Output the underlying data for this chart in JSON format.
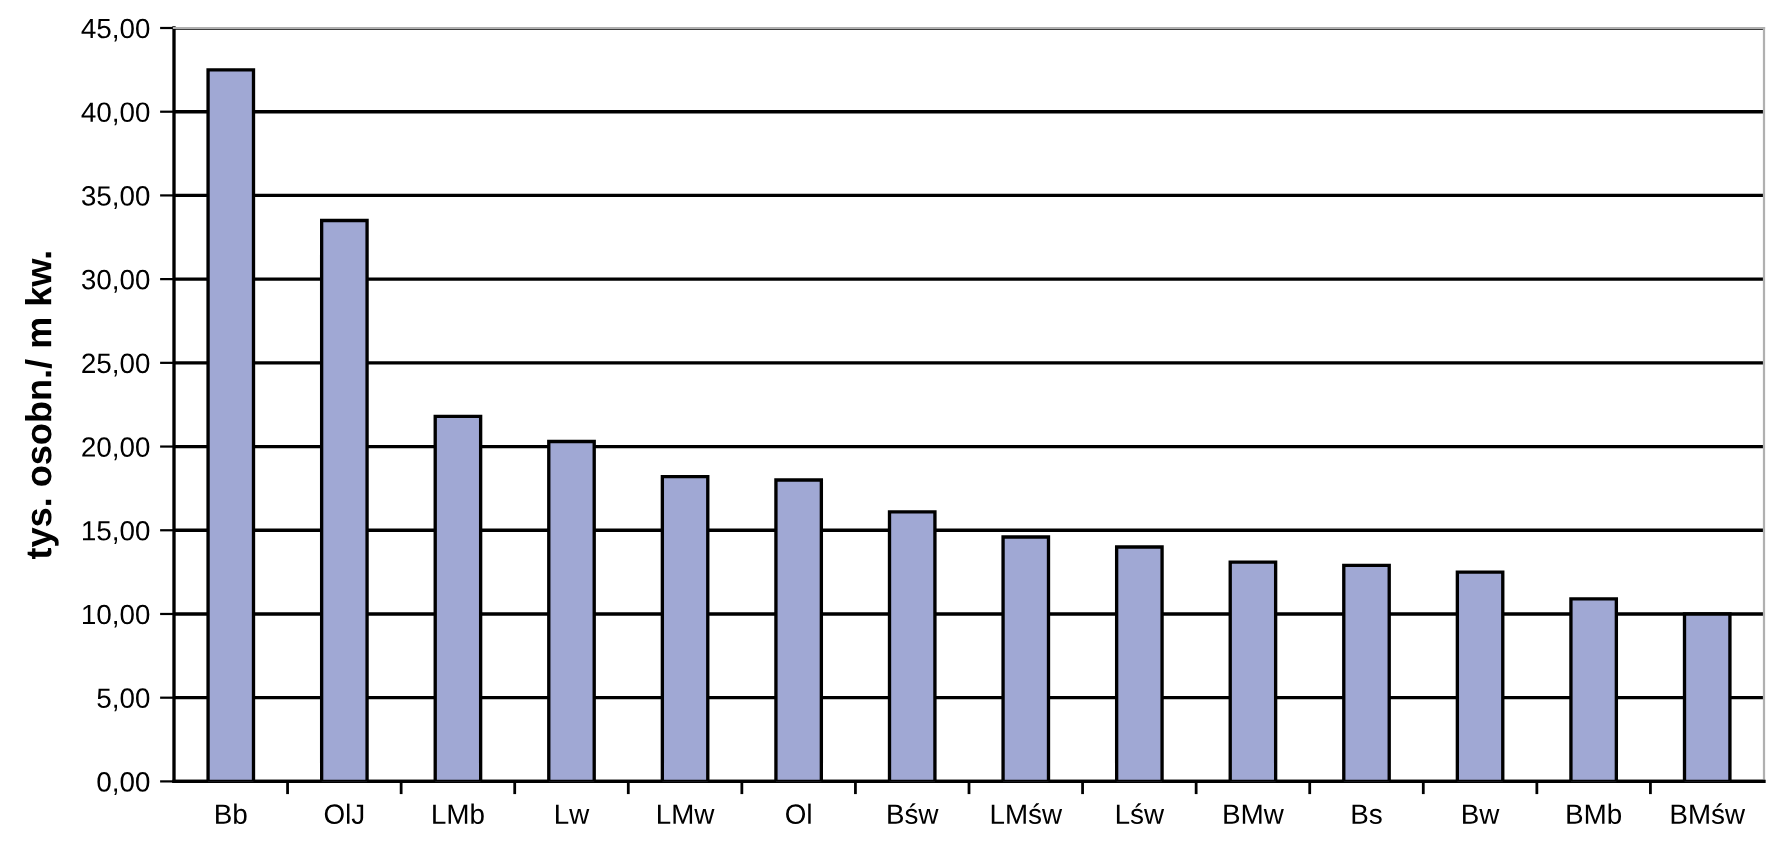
{
  "chart_data": {
    "type": "bar",
    "ylabel": "tys. osobn./ m kw.",
    "categories": [
      "Bb",
      "OlJ",
      "LMb",
      "Lw",
      "LMw",
      "Ol",
      "Bśw",
      "LMśw",
      "Lśw",
      "BMw",
      "Bs",
      "Bw",
      "BMb",
      "BMśw"
    ],
    "values": [
      42.5,
      33.5,
      21.8,
      20.3,
      18.2,
      18.0,
      16.1,
      14.6,
      14.0,
      13.1,
      12.9,
      12.5,
      10.9,
      10.0
    ],
    "color": "#a0a8d4",
    "ylim": [
      0,
      45
    ],
    "yticks": [
      {
        "value": 0,
        "label": "0,00"
      },
      {
        "value": 5,
        "label": "5,00"
      },
      {
        "value": 10,
        "label": "10,00"
      },
      {
        "value": 15,
        "label": "15,00"
      },
      {
        "value": 20,
        "label": "20,00"
      },
      {
        "value": 25,
        "label": "25,00"
      },
      {
        "value": 30,
        "label": "30,00"
      },
      {
        "value": 35,
        "label": "35,00"
      },
      {
        "value": 40,
        "label": "40,00"
      },
      {
        "value": 45,
        "label": "45,00"
      }
    ],
    "grid": "y"
  }
}
